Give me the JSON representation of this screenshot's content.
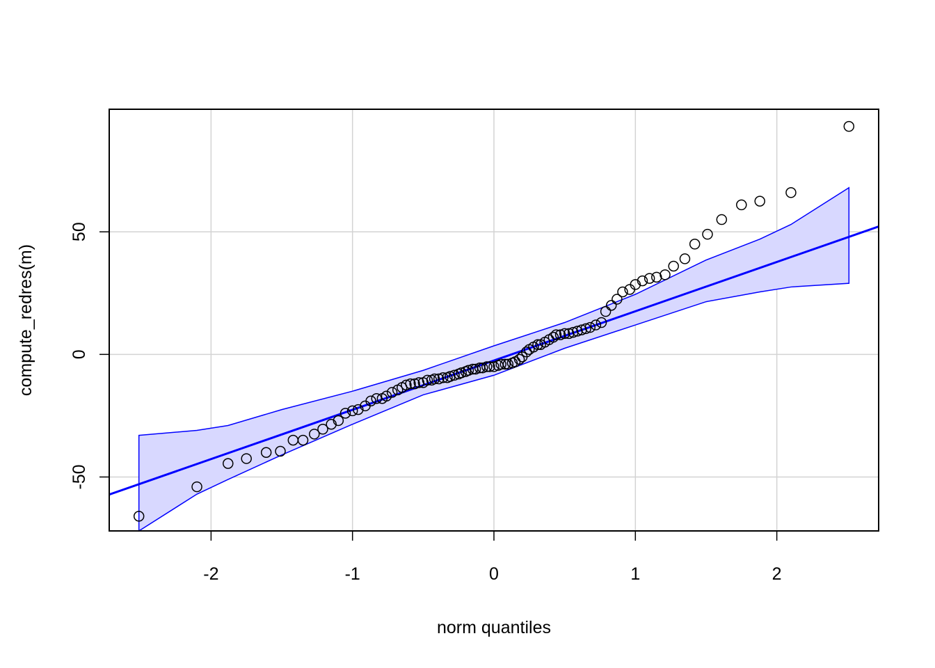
{
  "chart_data": {
    "type": "scatter",
    "subtype": "qq-plot",
    "title": "",
    "xlabel": "norm quantiles",
    "ylabel": "compute_redres(m)",
    "xlim": [
      -2.72,
      2.72
    ],
    "ylim": [
      -72,
      100
    ],
    "x_ticks": [
      -2,
      -1,
      0,
      1,
      2
    ],
    "x_tick_labels": [
      "-2",
      "-1",
      "0",
      "1",
      "2"
    ],
    "y_ticks": [
      -50,
      0,
      50
    ],
    "y_tick_labels": [
      "-50",
      "0",
      "50"
    ],
    "grid": true,
    "legend": "none",
    "colors": {
      "points": "#000000",
      "reference_line": "#0000ff",
      "envelope_fill": "#d8d8ff",
      "envelope_border": "#0000ff",
      "grid": "#d3d3d3",
      "frame": "#000000"
    },
    "reference_line": {
      "intercept": -2.5,
      "slope": 20.1
    },
    "envelope": {
      "x": [
        -2.51,
        -2.1,
        -1.88,
        -1.5,
        -1.0,
        -0.5,
        0.0,
        0.5,
        1.0,
        1.5,
        1.88,
        2.1,
        2.51
      ],
      "upper": [
        -33,
        -31,
        -29,
        -22.5,
        -15,
        -6.5,
        3.5,
        13,
        24.5,
        38.5,
        47,
        53,
        68
      ],
      "lower": [
        -72,
        -57,
        -51,
        -41,
        -28.5,
        -16.5,
        -8.5,
        2.5,
        12,
        21.5,
        25.5,
        27.5,
        29
      ]
    },
    "points": {
      "x": [
        -2.51,
        -2.1,
        -1.88,
        -1.75,
        -1.61,
        -1.51,
        -1.42,
        -1.35,
        -1.27,
        -1.21,
        -1.15,
        -1.1,
        -1.05,
        -1.0,
        -0.96,
        -0.91,
        -0.87,
        -0.83,
        -0.79,
        -0.76,
        -0.72,
        -0.68,
        -0.65,
        -0.62,
        -0.59,
        -0.56,
        -0.53,
        -0.5,
        -0.47,
        -0.44,
        -0.42,
        -0.39,
        -0.36,
        -0.33,
        -0.31,
        -0.28,
        -0.25,
        -0.23,
        -0.2,
        -0.18,
        -0.15,
        -0.13,
        -0.1,
        -0.08,
        -0.05,
        -0.03,
        0.0,
        0.03,
        0.05,
        0.08,
        0.1,
        0.13,
        0.15,
        0.18,
        0.2,
        0.23,
        0.25,
        0.28,
        0.31,
        0.33,
        0.36,
        0.39,
        0.42,
        0.44,
        0.47,
        0.5,
        0.53,
        0.56,
        0.59,
        0.62,
        0.65,
        0.68,
        0.72,
        0.76,
        0.79,
        0.83,
        0.87,
        0.91,
        0.96,
        1.0,
        1.05,
        1.1,
        1.15,
        1.21,
        1.27,
        1.35,
        1.42,
        1.51,
        1.61,
        1.75,
        1.88,
        2.1,
        2.51
      ],
      "y": [
        -66,
        -54,
        -44.5,
        -42.5,
        -40,
        -39.5,
        -35,
        -35,
        -32.5,
        -30.5,
        -28.5,
        -27,
        -24,
        -23,
        -22.5,
        -21,
        -19,
        -18,
        -18,
        -17,
        -15.5,
        -14.5,
        -13.5,
        -12.5,
        -12,
        -12,
        -11.5,
        -11.5,
        -10.5,
        -10.5,
        -10,
        -10,
        -9.5,
        -9.5,
        -9,
        -8.5,
        -8,
        -7.5,
        -7,
        -6.5,
        -6,
        -6,
        -5.5,
        -5.5,
        -5,
        -5,
        -5,
        -4.5,
        -4,
        -4,
        -4,
        -3.5,
        -3,
        -2,
        -1,
        1,
        2,
        3,
        4,
        4,
        5,
        6,
        7,
        8,
        8,
        8.5,
        8.5,
        9,
        9.5,
        10,
        10.5,
        11,
        12,
        13,
        17.5,
        20,
        22.5,
        25.5,
        26.5,
        28.5,
        30,
        31,
        31.5,
        32.5,
        36,
        39,
        45,
        49,
        55,
        61,
        62.5,
        66,
        93
      ]
    }
  }
}
